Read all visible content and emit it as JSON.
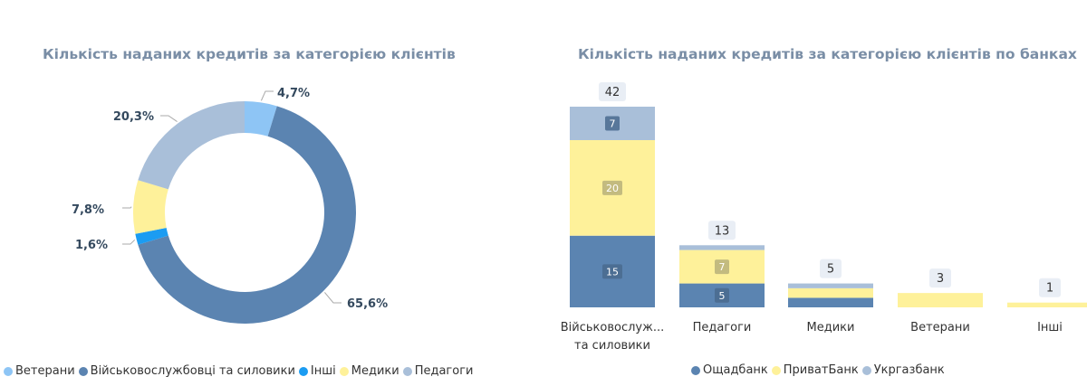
{
  "chart_data": [
    {
      "type": "pie",
      "title": "Кількість наданих кредитів за категорією клієнтів",
      "slices": [
        {
          "name": "Ветерани",
          "value": 4.7,
          "label": "4,7%",
          "color": "#8ec5f5"
        },
        {
          "name": "Військовослужбовці та силовики",
          "value": 65.6,
          "label": "65,6%",
          "color": "#5b84b1"
        },
        {
          "name": "Інші",
          "value": 1.6,
          "label": "1,6%",
          "color": "#1b9cf2"
        },
        {
          "name": "Медики",
          "value": 7.8,
          "label": "7,8%",
          "color": "#fef19a"
        },
        {
          "name": "Педагоги",
          "value": 20.3,
          "label": "20,3%",
          "color": "#a9bfd9"
        }
      ],
      "legend_position": "bottom"
    },
    {
      "type": "bar",
      "stacked": true,
      "title": "Кількість наданих кредитів за категорією клієнтів по банках",
      "categories": [
        "Військовослуж...\nта силовики",
        "Педагоги",
        "Медики",
        "Ветерани",
        "Інші"
      ],
      "series": [
        {
          "name": "Ощадбанк",
          "color": "#5b84b1",
          "values": [
            15,
            5,
            2,
            0,
            0
          ]
        },
        {
          "name": "ПриватБанк",
          "color": "#fef19a",
          "values": [
            20,
            7,
            2,
            3,
            1
          ]
        },
        {
          "name": "Укргазбанк",
          "color": "#a9bfd9",
          "values": [
            7,
            1,
            1,
            0,
            0
          ]
        }
      ],
      "segment_labels": [
        [
          "15",
          "5",
          "",
          "",
          ""
        ],
        [
          "20",
          "7",
          "",
          "",
          ""
        ],
        [
          "7",
          "",
          "",
          "",
          ""
        ]
      ],
      "totals": [
        "42",
        "13",
        "5",
        "3",
        "1"
      ],
      "ylim": [
        0,
        42
      ],
      "legend_position": "bottom"
    }
  ]
}
